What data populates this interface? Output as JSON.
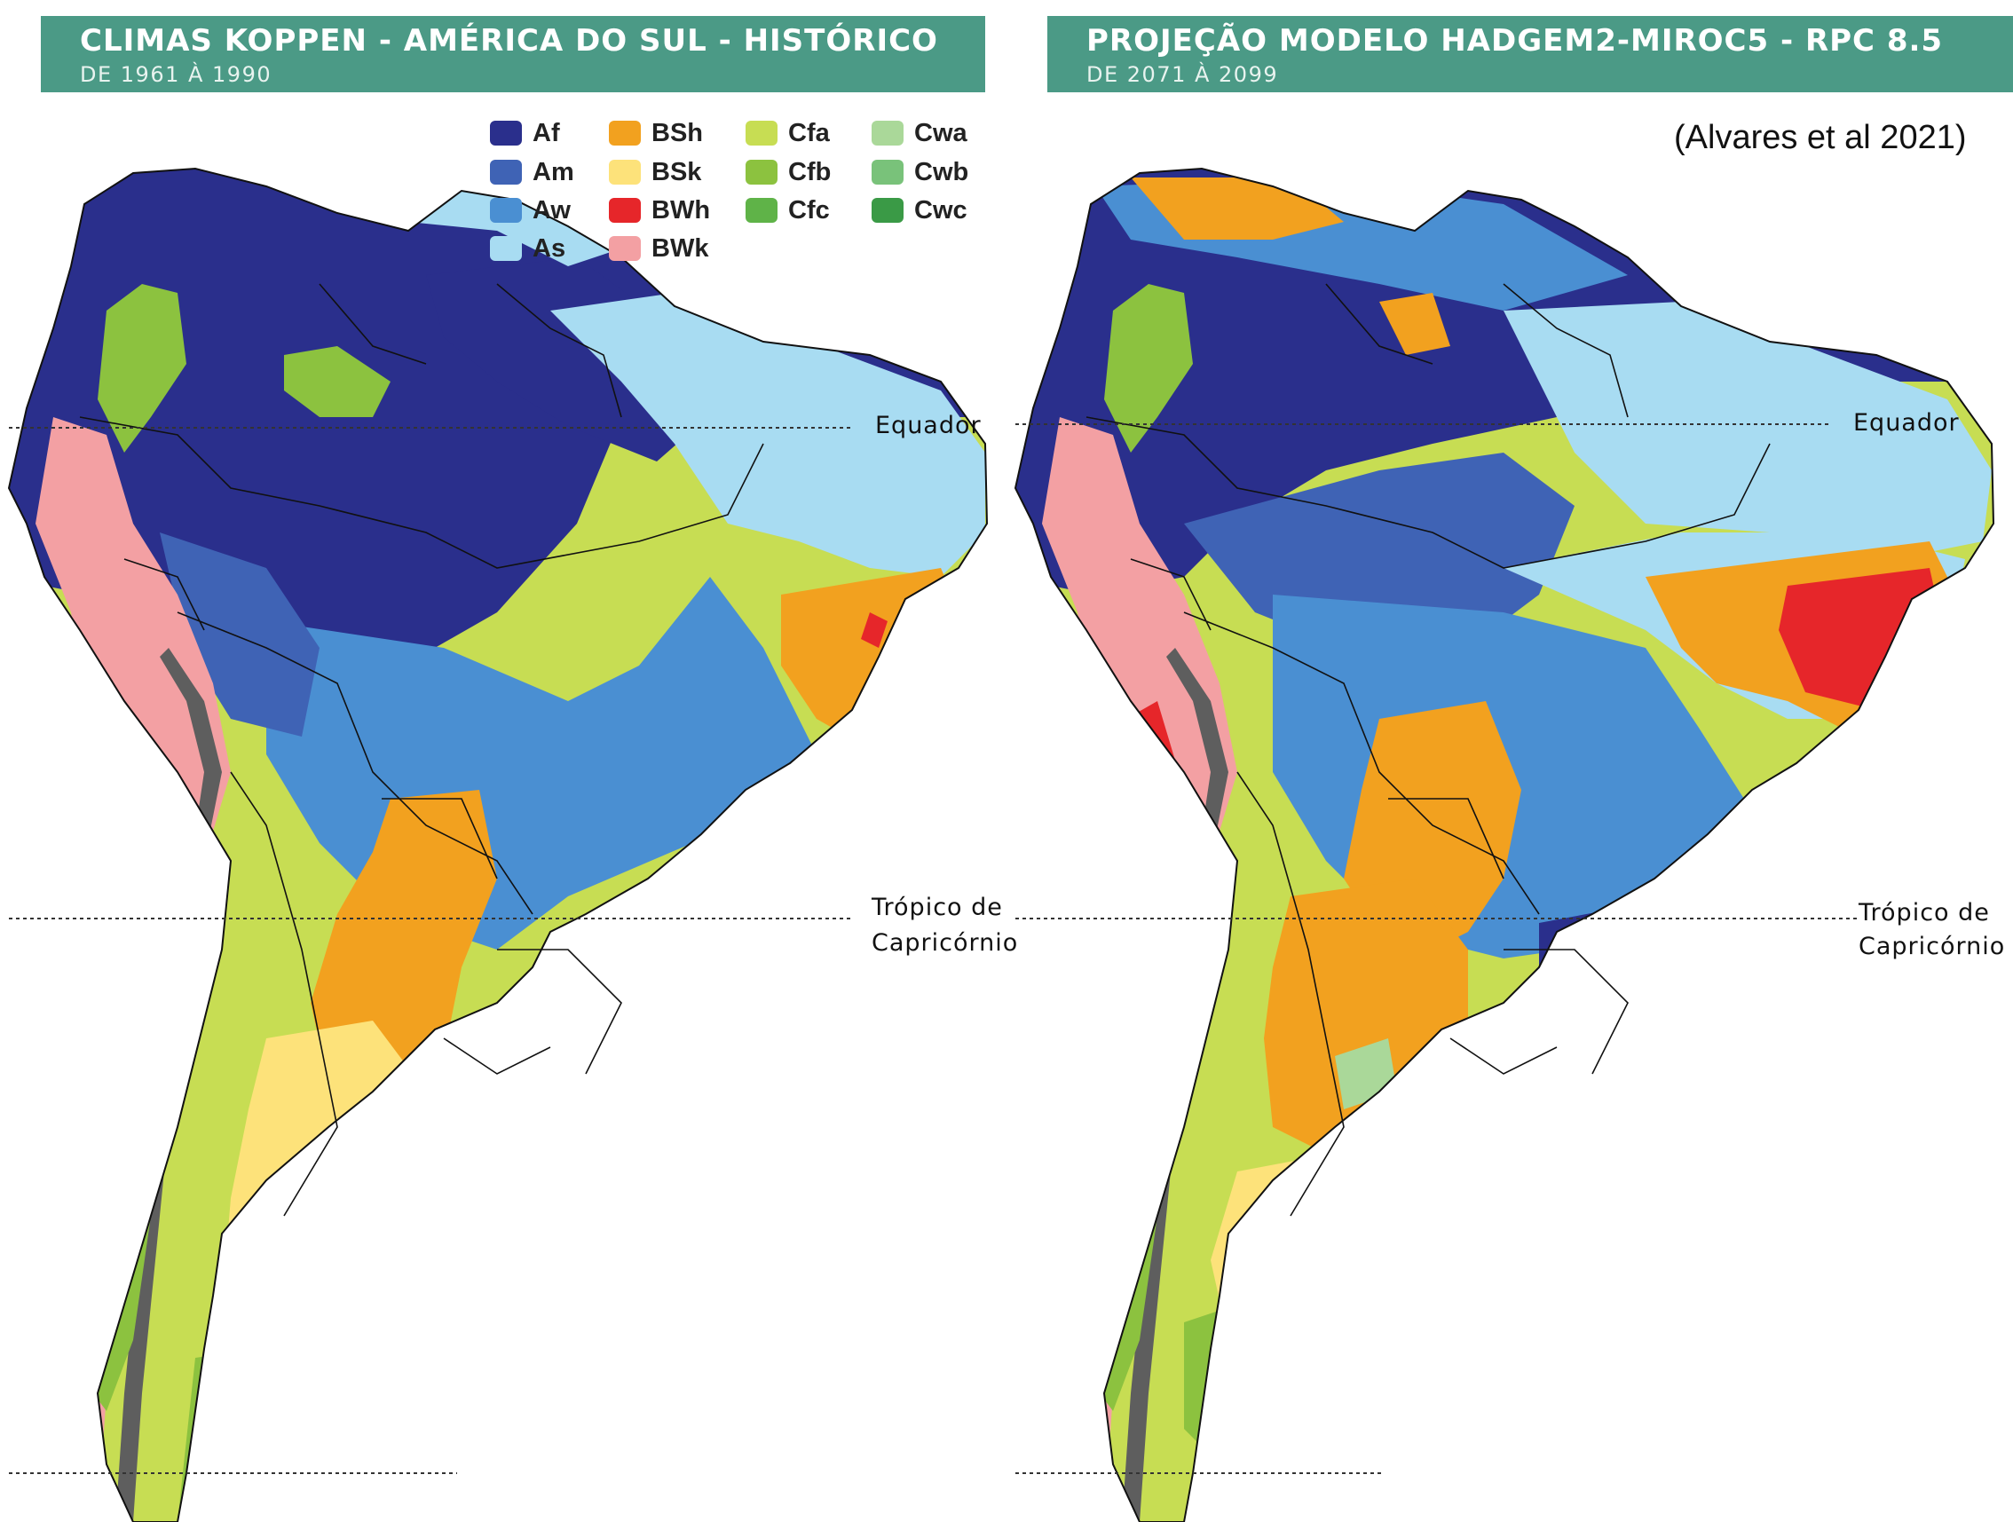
{
  "panels": [
    {
      "title": "CLIMAS KOPPEN - AMÉRICA DO SUL - HISTÓRICO",
      "subtitle": "DE 1961 À 1990",
      "equator_label": "Equador",
      "tropic_label_line1": "Trópico de",
      "tropic_label_line2": "Capricórnio"
    },
    {
      "title": "PROJEÇÃO MODELO HADGEM2-MIROC5 - RPC 8.5",
      "subtitle": "DE 2071 À 2099",
      "equator_label": "Equador",
      "tropic_label_line1": "Trópico de",
      "tropic_label_line2": "Capricórnio",
      "citation": "(Alvares et al 2021)"
    }
  ],
  "legend": [
    {
      "code": "Af",
      "color": "#2a2f8c"
    },
    {
      "code": "Am",
      "color": "#3f63b5"
    },
    {
      "code": "Aw",
      "color": "#4a8fd2"
    },
    {
      "code": "As",
      "color": "#a8dcf2"
    },
    {
      "code": "BSh",
      "color": "#f2a11f"
    },
    {
      "code": "BSk",
      "color": "#fde27a"
    },
    {
      "code": "BWh",
      "color": "#e6262a"
    },
    {
      "code": "BWk",
      "color": "#f3a0a3"
    },
    {
      "code": "Cfa",
      "color": "#c7dd53"
    },
    {
      "code": "Cfb",
      "color": "#8cc23f"
    },
    {
      "code": "Cfc",
      "color": "#5fb348"
    },
    {
      "code": "Cwa",
      "color": "#aad899"
    },
    {
      "code": "Cwb",
      "color": "#79c27a"
    },
    {
      "code": "Cwc",
      "color": "#3a9a46"
    }
  ]
}
